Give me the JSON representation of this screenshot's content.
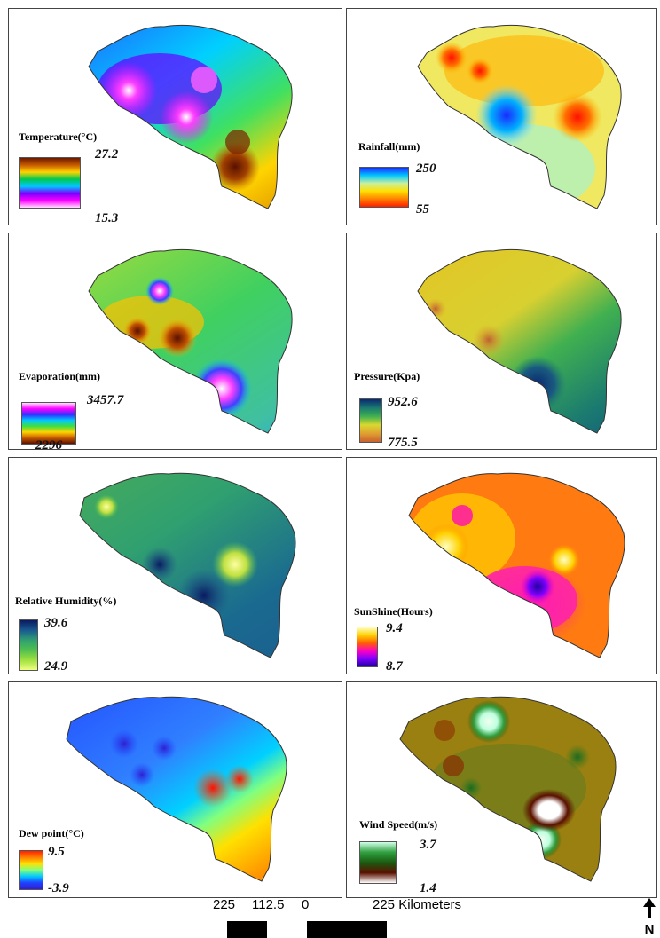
{
  "panels": [
    {
      "id": "temperature",
      "title": "Temperature(°C)",
      "max": "27.2",
      "min": "15.3",
      "legend_colors": [
        "#6b1a00",
        "#c85a00",
        "#ffd400",
        "#00c850",
        "#00c8ff",
        "#7a00ff",
        "#ff00ff",
        "#ffe0ff"
      ]
    },
    {
      "id": "rainfall",
      "title": "Rainfall(mm)",
      "max": "250",
      "min": "55",
      "legend_colors": [
        "#1a2aff",
        "#00c8ff",
        "#c8f0a0",
        "#ffe000",
        "#ff8000",
        "#ff2000"
      ]
    },
    {
      "id": "evaporation",
      "title": "Evaporation(mm)",
      "max": "3457.7",
      "min": "2296",
      "legend_colors": [
        "#ffe0ff",
        "#ff00ff",
        "#3030ff",
        "#00c8ff",
        "#40e040",
        "#ffd400",
        "#c85a00",
        "#5a1000"
      ]
    },
    {
      "id": "pressure",
      "title": "Pressure(Kpa)",
      "max": "952.6",
      "min": "775.5",
      "legend_colors": [
        "#0a2a70",
        "#1a7a70",
        "#40b050",
        "#d8d830",
        "#e0a030",
        "#c86030"
      ]
    },
    {
      "id": "humidity",
      "title": "Relative Humidity(%)",
      "max": "39.6",
      "min": "24.9",
      "legend_colors": [
        "#0a1a60",
        "#1a5a90",
        "#30a070",
        "#50c050",
        "#a0e040",
        "#f0ff80"
      ]
    },
    {
      "id": "sunshine",
      "title": "SunShine(Hours)",
      "max": "9.4",
      "min": "8.7",
      "legend_colors": [
        "#ffffc0",
        "#ffd000",
        "#ff6000",
        "#ff00c0",
        "#8000ff",
        "#2000a0"
      ]
    },
    {
      "id": "dewpoint",
      "title": "Dew point(°C)",
      "max": "9.5",
      "min": "-3.9",
      "legend_colors": [
        "#ff2000",
        "#ff8000",
        "#ffe000",
        "#80ff80",
        "#00c8ff",
        "#2040ff",
        "#3020d0"
      ]
    },
    {
      "id": "windspeed",
      "title": "Wind Speed(m/s)",
      "max": "3.7",
      "min": "1.4",
      "legend_colors": [
        "#d0ffe8",
        "#30a040",
        "#1a5a10",
        "#5a1000",
        "#ffffff"
      ]
    }
  ],
  "scale": {
    "labels": [
      "225",
      "112.5",
      "0",
      "225 Kilometers"
    ]
  },
  "north_label": "N",
  "colors": {
    "border": "#333333"
  }
}
